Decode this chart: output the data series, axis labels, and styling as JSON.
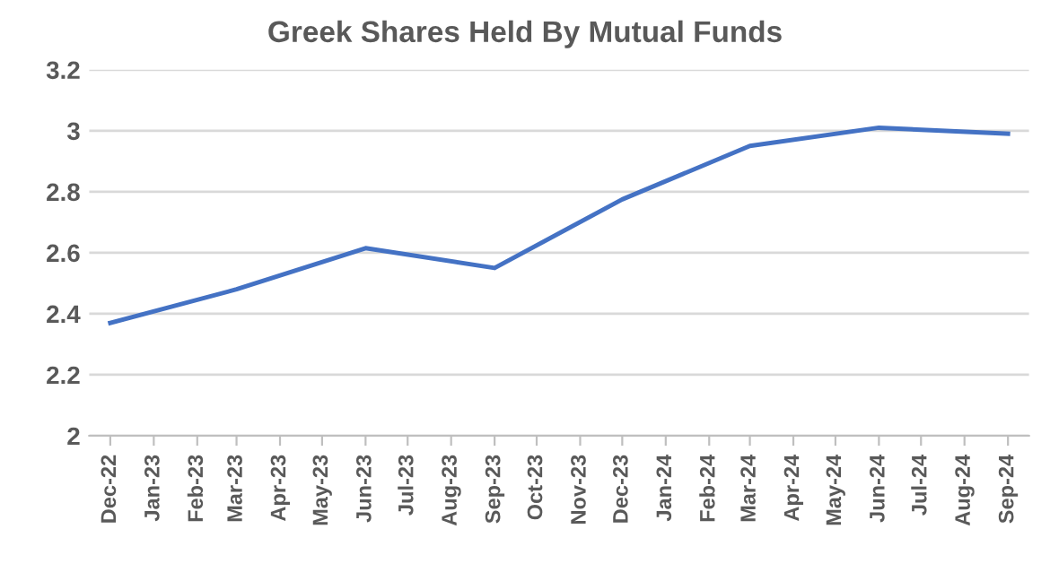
{
  "chart_data": {
    "type": "line",
    "title": "Greek Shares Held By Mutual Funds",
    "x": [
      "2022-12",
      "2023-03",
      "2023-06",
      "2023-09",
      "2023-12",
      "2024-03",
      "2024-06",
      "2024-09"
    ],
    "series": [
      {
        "color": "#4472c4",
        "values": [
          2.37,
          2.48,
          2.615,
          2.55,
          2.775,
          2.95,
          3.01,
          2.99
        ]
      }
    ],
    "xlim": [
      "2022-11-16",
      "2024-09-16"
    ],
    "xticks": [
      {
        "value": "2022-12",
        "label": "Dec-22"
      },
      {
        "value": "2023-01",
        "label": "Jan-23"
      },
      {
        "value": "2023-02",
        "label": "Feb-23"
      },
      {
        "value": "2023-03",
        "label": "Mar-23"
      },
      {
        "value": "2023-04",
        "label": "Apr-23"
      },
      {
        "value": "2023-05",
        "label": "May-23"
      },
      {
        "value": "2023-06",
        "label": "Jun-23"
      },
      {
        "value": "2023-07",
        "label": "Jul-23"
      },
      {
        "value": "2023-08",
        "label": "Aug-23"
      },
      {
        "value": "2023-09",
        "label": "Sep-23"
      },
      {
        "value": "2023-10",
        "label": "Oct-23"
      },
      {
        "value": "2023-11",
        "label": "Nov-23"
      },
      {
        "value": "2023-12",
        "label": "Dec-23"
      },
      {
        "value": "2024-01",
        "label": "Jan-24"
      },
      {
        "value": "2024-02",
        "label": "Feb-24"
      },
      {
        "value": "2024-03",
        "label": "Mar-24"
      },
      {
        "value": "2024-04",
        "label": "Apr-24"
      },
      {
        "value": "2024-05",
        "label": "May-24"
      },
      {
        "value": "2024-06",
        "label": "Jun-24"
      },
      {
        "value": "2024-07",
        "label": "Jul-24"
      },
      {
        "value": "2024-08",
        "label": "Aug-24"
      },
      {
        "value": "2024-09",
        "label": "Sep-24"
      }
    ],
    "ylim": [
      2,
      3.2
    ],
    "yticks": [
      2,
      2.2,
      2.4,
      2.6,
      2.8,
      3,
      3.2
    ],
    "grid": "y",
    "marker": "none",
    "line_style": "solid"
  }
}
